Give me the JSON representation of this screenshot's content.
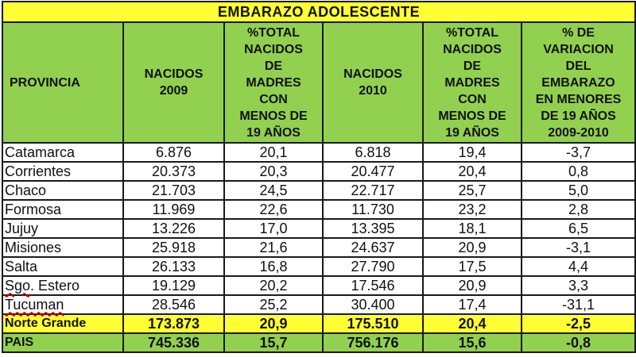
{
  "title": "EMBARAZO ADOLESCENTE",
  "headers": [
    "PROVINCIA",
    "NACIDOS\n2009",
    "%TOTAL\nNACIDOS\nDE\nMADRES\nCON\nMENOS DE\n19 AÑOS",
    "NACIDOS\n2010",
    "%TOTAL\nNACIDOS\nDE\nMADRES\nCON\nMENOS DE\n19 AÑOS",
    "% DE\nVARIACION\nDEL\nEMBARAZO\nEN MENORES\nDE 19 AÑOS\n2009-2010"
  ],
  "rows": [
    [
      "Catamarca",
      "6.876",
      "20,1",
      "6.818",
      "19,4",
      "-3,7"
    ],
    [
      "Corrientes",
      "20.373",
      "20,3",
      "20.477",
      "20,4",
      "0,8"
    ],
    [
      "Chaco",
      "21.703",
      "24,5",
      "22.717",
      "25,7",
      "5,0"
    ],
    [
      "Formosa",
      "11.969",
      "22,6",
      "11.730",
      "23,2",
      "2,8"
    ],
    [
      "Jujuy",
      "13.226",
      "17,0",
      "13.395",
      "18,1",
      "6,5"
    ],
    [
      "Misiones",
      "25.918",
      "21,6",
      "24.637",
      "20,9",
      "-3,1"
    ],
    [
      "Salta",
      "26.133",
      "16,8",
      "27.790",
      "17,5",
      "4,4"
    ],
    [
      "Sgo. Estero",
      "19.129",
      "20,2",
      "17.546",
      "20,9",
      "3,3"
    ],
    [
      "Tucuman",
      "28.546",
      "25,2",
      "30.400",
      "17,4",
      "-31,1"
    ]
  ],
  "norte_grande": [
    "Norte Grande",
    "173.873",
    "20,9",
    "175.510",
    "20,4",
    "-2,5"
  ],
  "pais": [
    "PAIS",
    "745.336",
    "15,7",
    "756.176",
    "15,6",
    "-0,8"
  ],
  "colors": {
    "title_bg": "#ffff33",
    "header_bg": "#92d050",
    "norte_grande_bg": "#ffff33",
    "pais_bg": "#92d050",
    "spellcheck_underline": "#d00000"
  }
}
